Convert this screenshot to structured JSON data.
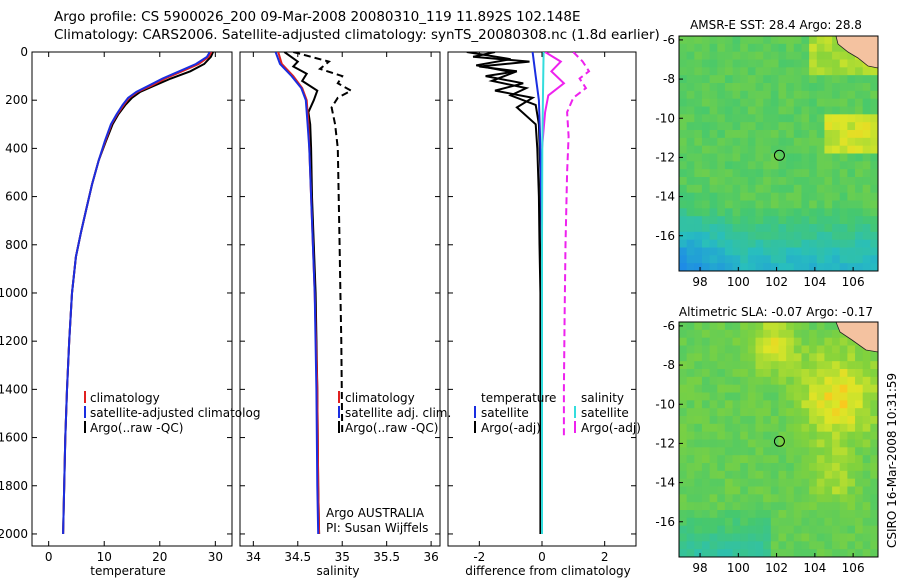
{
  "header": {
    "line1": "Argo profile: CS 5900026_200 09-Mar-2008 20080310_119 11.892S 102.148E",
    "line2": "Climatology: CARS2006. Satellite-adjusted climatology: synTS_20080308.nc (1.8d earlier)"
  },
  "side_label": "CSIRO 16-Mar-2008 10:31:59",
  "colors": {
    "climatology": "#e02020",
    "satellite": "#1a2ee0",
    "argo": "#000000",
    "salinity_diff": "#ee22ee",
    "satellite_salinity_diff": "#33dddd",
    "land": "#f4c2a0"
  },
  "chart_data": [
    {
      "type": "line",
      "name": "temperature-profile",
      "xlabel": "temperature",
      "ylabel": "",
      "xlim": [
        -3,
        33
      ],
      "ylim": [
        0,
        2050
      ],
      "y_inverted": true,
      "xticks": [
        0,
        10,
        20,
        30
      ],
      "yticks": [
        0,
        200,
        400,
        600,
        800,
        1000,
        1200,
        1400,
        1600,
        1800,
        2000
      ],
      "legend": [
        "climatology",
        "satellite-adjusted climatolog",
        "Argo(..raw -QC)"
      ],
      "legend_position": "lower-right",
      "series": [
        {
          "name": "Argo(..raw -QC)",
          "color": "#000000",
          "style": "solid",
          "x": [
            29.6,
            29.2,
            28.0,
            25.5,
            22.0,
            19.0,
            16.5,
            15.0,
            13.8,
            12.5,
            11.5,
            10.3,
            9.0,
            7.8,
            6.8,
            5.8,
            4.9,
            4.2,
            3.7,
            3.3,
            3.0,
            2.8,
            2.6
          ],
          "y": [
            0,
            20,
            50,
            80,
            110,
            140,
            165,
            190,
            220,
            260,
            300,
            370,
            450,
            550,
            650,
            750,
            850,
            1000,
            1200,
            1400,
            1600,
            1800,
            2000
          ]
        },
        {
          "name": "climatology",
          "color": "#e02020",
          "style": "solid",
          "x": [
            29.3,
            28.8,
            27.0,
            24.0,
            21.0,
            18.5,
            16.0,
            14.5,
            13.5,
            12.3,
            11.3,
            10.2,
            9.0,
            7.8,
            6.8,
            5.8,
            4.9,
            4.2,
            3.7,
            3.3,
            3.0,
            2.8,
            2.6
          ],
          "y": [
            0,
            20,
            50,
            80,
            110,
            140,
            165,
            190,
            220,
            260,
            300,
            370,
            450,
            550,
            650,
            750,
            850,
            1000,
            1200,
            1400,
            1600,
            1800,
            2000
          ]
        },
        {
          "name": "satellite-adjusted climatolog",
          "color": "#1a2ee0",
          "style": "solid",
          "x": [
            29.0,
            28.5,
            26.5,
            23.5,
            20.5,
            18.0,
            15.8,
            14.3,
            13.3,
            12.2,
            11.2,
            10.1,
            9.0,
            7.8,
            6.8,
            5.8,
            4.9,
            4.2,
            3.7,
            3.3,
            3.0,
            2.8,
            2.6
          ],
          "y": [
            0,
            20,
            50,
            80,
            110,
            140,
            165,
            190,
            220,
            260,
            300,
            370,
            450,
            550,
            650,
            750,
            850,
            1000,
            1200,
            1400,
            1600,
            1800,
            2000
          ]
        }
      ]
    },
    {
      "type": "line",
      "name": "salinity-profile",
      "xlabel": "salinity",
      "xlim": [
        33.85,
        36.1
      ],
      "ylim": [
        0,
        2050
      ],
      "y_inverted": true,
      "xticks": [
        34,
        34.5,
        35,
        35.5,
        36
      ],
      "legend": [
        "climatology",
        "satellite adj. clim.",
        "Argo(..raw -QC)"
      ],
      "legend_position": "lower-right",
      "annotations": [
        "Argo AUSTRALIA",
        "PI: Susan Wijffels"
      ],
      "series": [
        {
          "name": "Argo(..raw -QC)",
          "color": "#000000",
          "style": "solid",
          "x": [
            34.35,
            34.5,
            34.45,
            34.6,
            34.55,
            34.72,
            34.68,
            34.62,
            34.64,
            34.65,
            34.66,
            34.68,
            34.7,
            34.72,
            34.73,
            34.74
          ],
          "y": [
            0,
            40,
            60,
            90,
            120,
            160,
            200,
            250,
            300,
            400,
            600,
            800,
            1000,
            1400,
            1800,
            2000
          ]
        },
        {
          "name": "Argo(-adj)",
          "color": "#000000",
          "style": "dashed",
          "x": [
            34.45,
            34.85,
            34.75,
            35.0,
            34.95,
            35.1,
            34.95,
            34.88,
            34.92,
            34.95,
            34.96,
            34.97,
            34.98,
            34.99,
            35.0
          ],
          "y": [
            0,
            40,
            70,
            100,
            130,
            160,
            190,
            230,
            300,
            400,
            600,
            800,
            1000,
            1200,
            1580
          ]
        },
        {
          "name": "climatology",
          "color": "#e02020",
          "style": "solid",
          "x": [
            34.28,
            34.32,
            34.45,
            34.55,
            34.6,
            34.62,
            34.63,
            34.65,
            34.67,
            34.69,
            34.72,
            34.73,
            34.74
          ],
          "y": [
            0,
            50,
            100,
            150,
            200,
            300,
            400,
            600,
            800,
            1000,
            1400,
            1800,
            2000
          ]
        },
        {
          "name": "satellite adj. clim.",
          "color": "#1a2ee0",
          "style": "solid",
          "x": [
            34.25,
            34.3,
            34.43,
            34.54,
            34.59,
            34.61,
            34.63,
            34.65,
            34.67,
            34.69,
            34.71,
            34.72,
            34.73
          ],
          "y": [
            0,
            50,
            100,
            150,
            200,
            300,
            400,
            600,
            800,
            1000,
            1400,
            1800,
            2000
          ]
        }
      ]
    },
    {
      "type": "line",
      "name": "difference-profile",
      "xlabel": "difference from climatology",
      "xlim": [
        -3,
        3
      ],
      "ylim": [
        0,
        2050
      ],
      "y_inverted": true,
      "xticks": [
        -2,
        0,
        2
      ],
      "legend_temperature": [
        "temperature",
        "satellite",
        "Argo(-adj)"
      ],
      "legend_salinity": [
        "salinity",
        "satellite",
        "Argo(-adj)"
      ],
      "series": [
        {
          "name": "temperature Argo(-adj)",
          "color": "#000000",
          "style": "solid",
          "x": [
            -1.5,
            -2.2,
            -0.4,
            -2.0,
            -0.8,
            -1.8,
            -0.6,
            -1.5,
            -0.3,
            -0.8,
            -0.2,
            -0.15,
            -0.1,
            -0.08,
            -0.05,
            -0.05,
            -0.05
          ],
          "y": [
            0,
            20,
            40,
            60,
            80,
            100,
            130,
            160,
            190,
            230,
            300,
            400,
            600,
            800,
            1000,
            1500,
            2000
          ]
        },
        {
          "name": "temperature Argo(-adj) raw",
          "color": "#000000",
          "style": "solid",
          "x": [
            -2.4,
            -1.0,
            -2.1,
            -0.9,
            -1.6,
            -0.5,
            -1.0,
            -0.2,
            -0.1,
            -0.05,
            0.0
          ],
          "y": [
            0,
            30,
            55,
            85,
            120,
            150,
            180,
            220,
            300,
            500,
            1000
          ]
        },
        {
          "name": "temperature satellite",
          "color": "#1a2ee0",
          "style": "solid",
          "x": [
            -0.3,
            -0.2,
            -0.1,
            -0.05,
            0.0,
            0.0,
            0.0
          ],
          "y": [
            0,
            100,
            200,
            400,
            800,
            1400,
            2000
          ]
        },
        {
          "name": "salinity Argo(-adj)",
          "color": "#ee22ee",
          "style": "dashed",
          "x": [
            1.0,
            1.3,
            1.5,
            1.2,
            1.4,
            1.0,
            0.8,
            0.85,
            0.8,
            0.75,
            0.72,
            0.7,
            0.7
          ],
          "y": [
            0,
            40,
            80,
            110,
            150,
            190,
            250,
            350,
            500,
            800,
            1100,
            1400,
            1600
          ]
        },
        {
          "name": "salinity Argo raw",
          "color": "#ee22ee",
          "style": "solid",
          "x": [
            0.1,
            0.6,
            0.3,
            0.7,
            0.2,
            0.1,
            0.0
          ],
          "y": [
            0,
            40,
            80,
            130,
            180,
            250,
            400
          ]
        },
        {
          "name": "salinity satellite",
          "color": "#33dddd",
          "style": "solid",
          "x": [
            0.05,
            0.03,
            0.01,
            0.0,
            0.0,
            0.0,
            0.0
          ],
          "y": [
            0,
            200,
            400,
            800,
            1200,
            1600,
            2000
          ]
        }
      ]
    },
    {
      "type": "heatmap",
      "name": "amsr-sst-map",
      "title": "AMSR-E SST: 28.4 Argo: 28.8",
      "xlim": [
        96.9,
        107.3
      ],
      "ylim": [
        -17.8,
        -5.8
      ],
      "xticks": [
        98,
        100,
        102,
        104,
        106
      ],
      "yticks": [
        -6,
        -8,
        -10,
        -12,
        -14,
        -16
      ],
      "marker": {
        "lon": 102.148,
        "lat": -11.892
      }
    },
    {
      "type": "heatmap",
      "name": "altimetric-sla-map",
      "title": "Altimetric SLA: -0.07 Argo: -0.17",
      "xlim": [
        96.9,
        107.3
      ],
      "ylim": [
        -17.8,
        -5.8
      ],
      "xticks": [
        98,
        100,
        102,
        104,
        106
      ],
      "yticks": [
        -6,
        -8,
        -10,
        -12,
        -14,
        -16
      ],
      "marker": {
        "lon": 102.148,
        "lat": -11.892
      }
    }
  ]
}
